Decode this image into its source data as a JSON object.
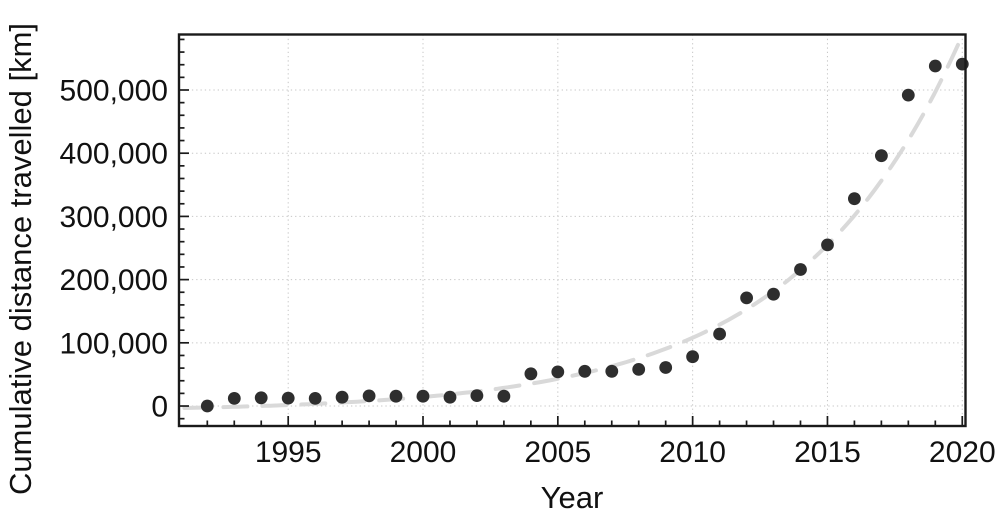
{
  "chart_data": {
    "type": "scatter",
    "title": "",
    "xlabel": "Year",
    "ylabel": "Cumulative distance travelled [km]",
    "x": [
      1992,
      1993,
      1994,
      1995,
      1996,
      1997,
      1998,
      1999,
      2000,
      2001,
      2002,
      2003,
      2004,
      2005,
      2006,
      2007,
      2008,
      2009,
      2010,
      2011,
      2012,
      2013,
      2014,
      2015,
      2016,
      2017,
      2018,
      2019,
      2020
    ],
    "y": [
      0,
      12000,
      13000,
      12500,
      12000,
      14000,
      16000,
      15500,
      15500,
      14000,
      16500,
      15500,
      51000,
      54000,
      55000,
      55000,
      58000,
      61000,
      78000,
      114000,
      171000,
      177000,
      216000,
      255000,
      328000,
      396000,
      492000,
      538000,
      541000
    ],
    "xlim": [
      1990.95,
      2020.12
    ],
    "ylim": [
      -31600,
      587800
    ],
    "x_major_ticks": [
      1995,
      2000,
      2005,
      2010,
      2015,
      2020
    ],
    "x_tick_labels": [
      "1995",
      "2000",
      "2005",
      "2010",
      "2015",
      "2020"
    ],
    "y_major_ticks": [
      0,
      100000,
      200000,
      300000,
      400000,
      500000
    ],
    "y_tick_labels": [
      "0",
      "100,000",
      "200,000",
      "300,000",
      "400,000",
      "500,000"
    ],
    "x_minor_step": 1,
    "y_minor_step": 20000,
    "grid": {
      "show": true,
      "style": "dotted",
      "on": "major-ticks"
    },
    "legend": {
      "show": false
    },
    "trend_line": {
      "style": "long-dashed",
      "description": "light gray exponential fit drawn behind the points",
      "model": "a*exp(b*(year-1992))+c",
      "a": 6200,
      "b": 0.163,
      "c": -8500,
      "x_start": 1991.15,
      "x_end": 2019.95
    },
    "colors": {
      "point": "#2e2e2e",
      "trend": "#d9d9d9",
      "grid": "#c6c6c6",
      "frame": "#1a1a1a",
      "text": "#111111",
      "background": "#ffffff"
    }
  }
}
